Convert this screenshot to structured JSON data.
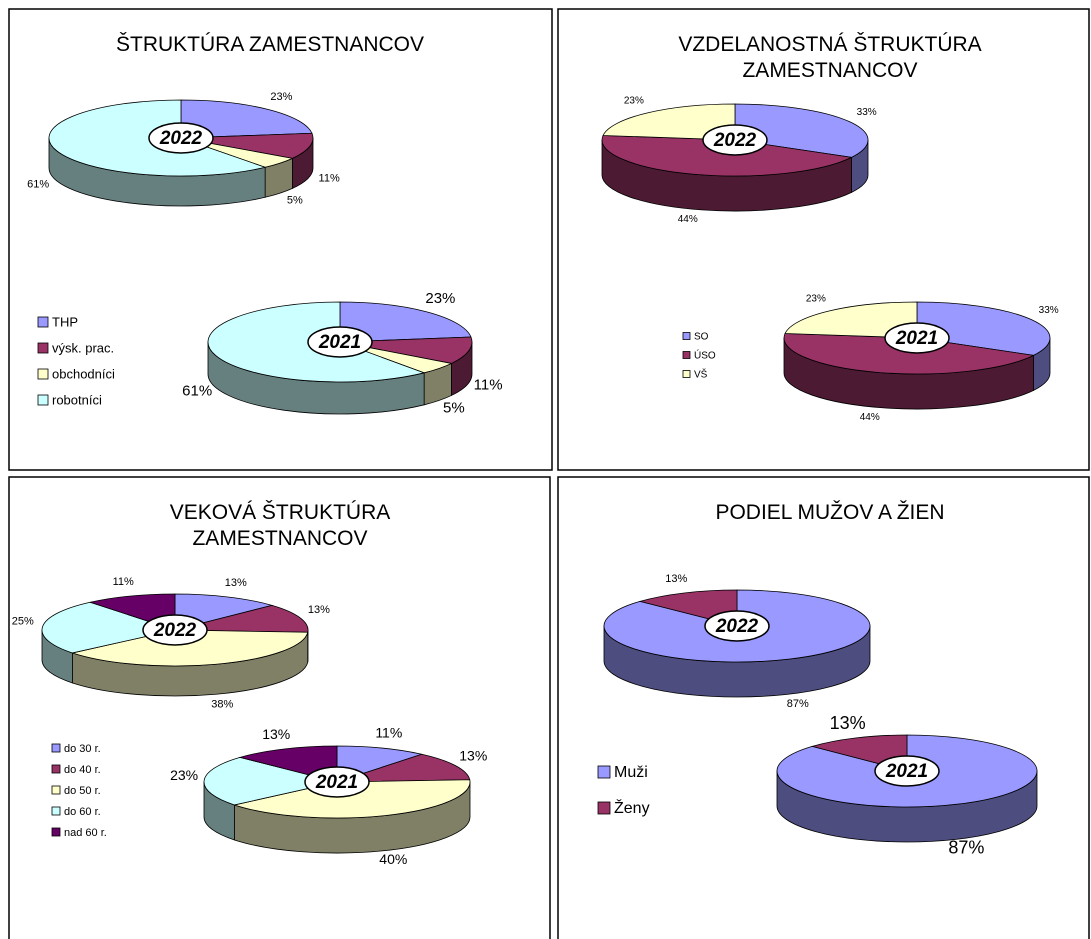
{
  "chart_data": [
    {
      "type": "pie",
      "title": "ŠTRUKTÚRA ZAMESTNANCOV",
      "categories": [
        "THP",
        "výsk. prac.",
        "obchodníci",
        "robotníci"
      ],
      "colors": [
        "#9999ff",
        "#993366",
        "#ffffcc",
        "#ccffff"
      ],
      "pies": [
        {
          "name": "2022",
          "values": [
            23,
            11,
            5,
            61
          ],
          "value_labels": [
            "23%",
            "11%",
            "5%",
            "61%"
          ]
        },
        {
          "name": "2021",
          "values": [
            23,
            11,
            5,
            61
          ],
          "value_labels": [
            "23%",
            "11%",
            "5%",
            "61%"
          ]
        }
      ]
    },
    {
      "type": "pie",
      "title": "VZDELANOSTNÁ ŠTRUKTÚRA ZAMESTNANCOV",
      "categories": [
        "SO",
        "ÚSO",
        "VŠ"
      ],
      "colors": [
        "#9999ff",
        "#993366",
        "#ffffcc"
      ],
      "pies": [
        {
          "name": "2022",
          "values": [
            33,
            44,
            23
          ],
          "value_labels": [
            "33%",
            "44%",
            "23%"
          ]
        },
        {
          "name": "2021",
          "values": [
            33,
            44,
            23
          ],
          "value_labels": [
            "33%",
            "44%",
            "23%"
          ]
        }
      ]
    },
    {
      "type": "pie",
      "title": "VEKOVÁ ŠTRUKTÚRA ZAMESTNANCOV",
      "categories": [
        "do 30 r.",
        "do 40 r.",
        "do 50 r.",
        "do 60 r.",
        "nad 60 r."
      ],
      "colors": [
        "#9999ff",
        "#993366",
        "#ffffcc",
        "#ccffff",
        "#660066"
      ],
      "pies": [
        {
          "name": "2022",
          "values": [
            13,
            13,
            38,
            25,
            11
          ],
          "value_labels": [
            "13%",
            "13%",
            "38%",
            "25%",
            "11%"
          ]
        },
        {
          "name": "2021",
          "values": [
            11,
            13,
            40,
            23,
            13
          ],
          "value_labels": [
            "11%",
            "13%",
            "40%",
            "23%",
            "13%"
          ]
        }
      ]
    },
    {
      "type": "pie",
      "title": "PODIEL MUŽOV A ŽIEN",
      "categories": [
        "Muži",
        "Ženy"
      ],
      "colors": [
        "#9999ff",
        "#993366"
      ],
      "pies": [
        {
          "name": "2022",
          "values": [
            87,
            13
          ],
          "value_labels": [
            "87%",
            "13%"
          ]
        },
        {
          "name": "2021",
          "values": [
            87,
            13
          ],
          "value_labels": [
            "87%",
            "13%"
          ]
        }
      ]
    }
  ]
}
